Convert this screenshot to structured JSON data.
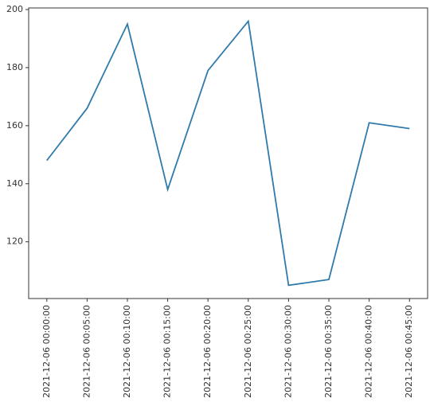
{
  "chart_data": {
    "type": "line",
    "x": [
      "2021-12-06 00:00:00",
      "2021-12-06 00:05:00",
      "2021-12-06 00:10:00",
      "2021-12-06 00:15:00",
      "2021-12-06 00:20:00",
      "2021-12-06 00:25:00",
      "2021-12-06 00:30:00",
      "2021-12-06 00:35:00",
      "2021-12-06 00:40:00",
      "2021-12-06 00:45:00"
    ],
    "series": [
      {
        "color": "#2e7bab",
        "values": [
          148,
          166,
          195,
          138,
          179,
          196,
          105,
          107,
          161,
          159
        ]
      }
    ],
    "ylim": [
      100.45,
      200.55
    ],
    "yticks": [
      120,
      140,
      160,
      180,
      200
    ]
  }
}
